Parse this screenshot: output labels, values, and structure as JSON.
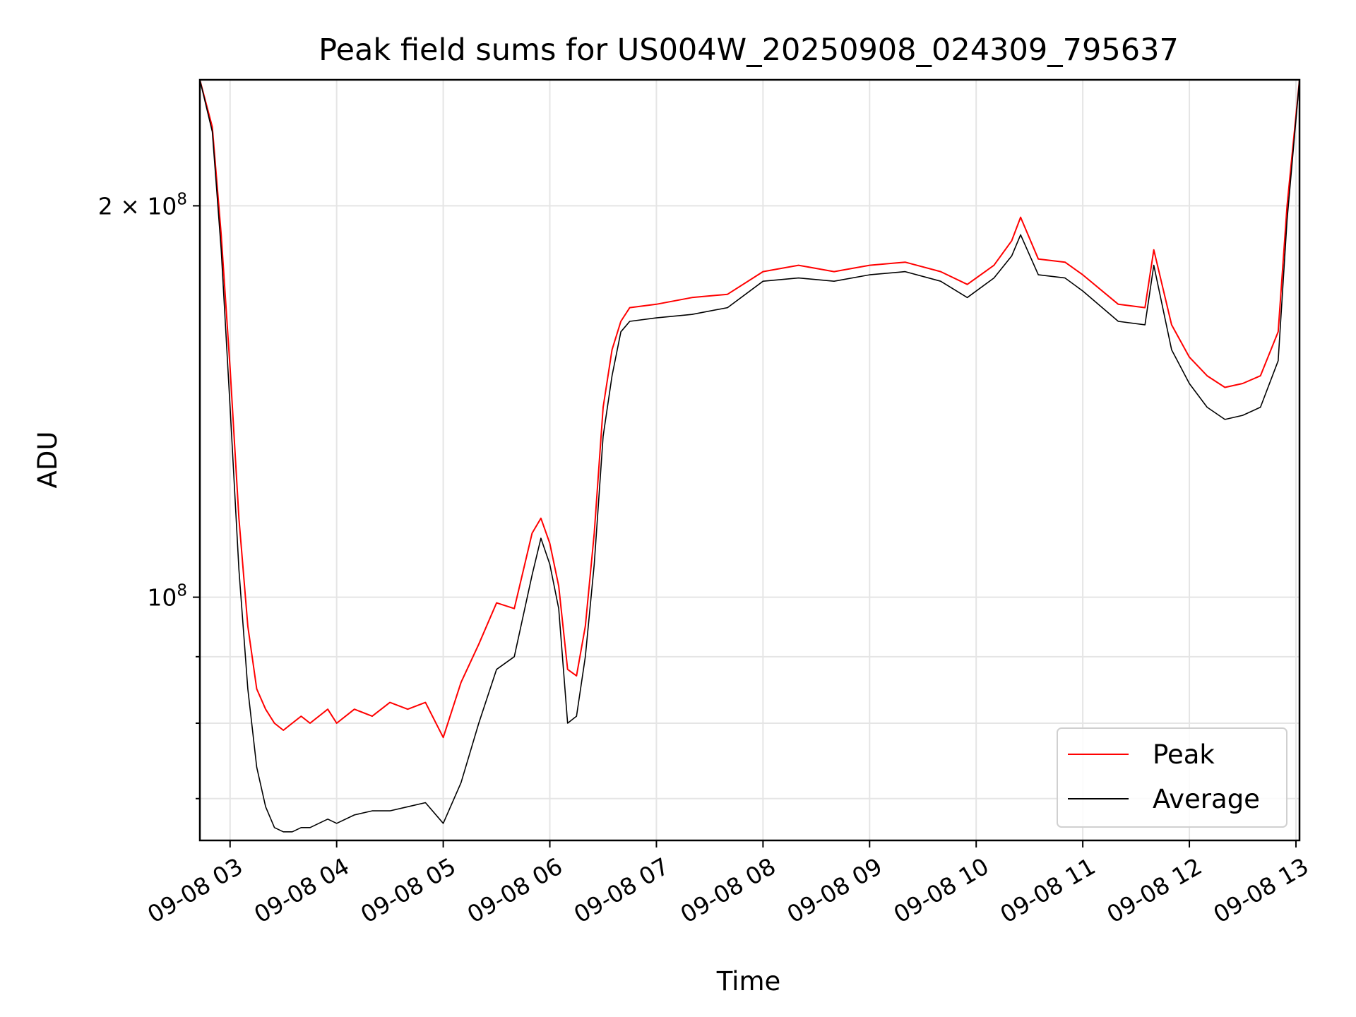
{
  "chart_data": {
    "type": "line",
    "title": "Peak field sums for US004W_20250908_024309_795637",
    "xlabel": "Time",
    "ylabel": "ADU",
    "y_scale": "log",
    "grid": true,
    "legend_position": "lower-right",
    "ylim": [
      65000000,
      250000000
    ],
    "xlim": [
      "2025-09-08 02:43",
      "2025-09-08 13:02"
    ],
    "x_ticks": [
      {
        "value": "2025-09-08 03:00",
        "label": "09-08 03"
      },
      {
        "value": "2025-09-08 04:00",
        "label": "09-08 04"
      },
      {
        "value": "2025-09-08 05:00",
        "label": "09-08 05"
      },
      {
        "value": "2025-09-08 06:00",
        "label": "09-08 06"
      },
      {
        "value": "2025-09-08 07:00",
        "label": "09-08 07"
      },
      {
        "value": "2025-09-08 08:00",
        "label": "09-08 08"
      },
      {
        "value": "2025-09-08 09:00",
        "label": "09-08 09"
      },
      {
        "value": "2025-09-08 10:00",
        "label": "09-08 10"
      },
      {
        "value": "2025-09-08 11:00",
        "label": "09-08 11"
      },
      {
        "value": "2025-09-08 12:00",
        "label": "09-08 12"
      },
      {
        "value": "2025-09-08 13:00",
        "label": "09-08 13"
      }
    ],
    "y_major_ticks": [
      {
        "value": 100000000,
        "base": "10",
        "exp": "8",
        "coef": ""
      },
      {
        "value": 200000000,
        "base": "10",
        "exp": "8",
        "coef": "2 × "
      }
    ],
    "y_minor_ticks": [
      70000000,
      80000000,
      90000000
    ],
    "series": [
      {
        "name": "Peak",
        "color": "#ff0000",
        "points": [
          [
            "2025-09-08 02:43",
            250000000
          ],
          [
            "2025-09-08 02:50",
            230000000
          ],
          [
            "2025-09-08 02:55",
            190000000
          ],
          [
            "2025-09-08 03:00",
            150000000
          ],
          [
            "2025-09-08 03:05",
            115000000
          ],
          [
            "2025-09-08 03:10",
            95000000
          ],
          [
            "2025-09-08 03:15",
            85000000
          ],
          [
            "2025-09-08 03:20",
            82000000
          ],
          [
            "2025-09-08 03:25",
            80000000
          ],
          [
            "2025-09-08 03:30",
            79000000
          ],
          [
            "2025-09-08 03:35",
            80000000
          ],
          [
            "2025-09-08 03:40",
            81000000
          ],
          [
            "2025-09-08 03:45",
            80000000
          ],
          [
            "2025-09-08 03:50",
            81000000
          ],
          [
            "2025-09-08 03:55",
            82000000
          ],
          [
            "2025-09-08 04:00",
            80000000
          ],
          [
            "2025-09-08 04:10",
            82000000
          ],
          [
            "2025-09-08 04:20",
            81000000
          ],
          [
            "2025-09-08 04:30",
            83000000
          ],
          [
            "2025-09-08 04:40",
            82000000
          ],
          [
            "2025-09-08 04:50",
            83000000
          ],
          [
            "2025-09-08 05:00",
            78000000
          ],
          [
            "2025-09-08 05:10",
            86000000
          ],
          [
            "2025-09-08 05:20",
            92000000
          ],
          [
            "2025-09-08 05:30",
            99000000
          ],
          [
            "2025-09-08 05:40",
            98000000
          ],
          [
            "2025-09-08 05:50",
            112000000
          ],
          [
            "2025-09-08 05:55",
            115000000
          ],
          [
            "2025-09-08 06:00",
            110000000
          ],
          [
            "2025-09-08 06:05",
            102000000
          ],
          [
            "2025-09-08 06:10",
            88000000
          ],
          [
            "2025-09-08 06:15",
            87000000
          ],
          [
            "2025-09-08 06:20",
            95000000
          ],
          [
            "2025-09-08 06:25",
            112000000
          ],
          [
            "2025-09-08 06:30",
            140000000
          ],
          [
            "2025-09-08 06:35",
            155000000
          ],
          [
            "2025-09-08 06:40",
            163000000
          ],
          [
            "2025-09-08 06:45",
            167000000
          ],
          [
            "2025-09-08 07:00",
            168000000
          ],
          [
            "2025-09-08 07:20",
            170000000
          ],
          [
            "2025-09-08 07:40",
            171000000
          ],
          [
            "2025-09-08 08:00",
            178000000
          ],
          [
            "2025-09-08 08:20",
            180000000
          ],
          [
            "2025-09-08 08:40",
            178000000
          ],
          [
            "2025-09-08 09:00",
            180000000
          ],
          [
            "2025-09-08 09:20",
            181000000
          ],
          [
            "2025-09-08 09:40",
            178000000
          ],
          [
            "2025-09-08 09:55",
            174000000
          ],
          [
            "2025-09-08 10:10",
            180000000
          ],
          [
            "2025-09-08 10:20",
            188000000
          ],
          [
            "2025-09-08 10:25",
            196000000
          ],
          [
            "2025-09-08 10:35",
            182000000
          ],
          [
            "2025-09-08 10:50",
            181000000
          ],
          [
            "2025-09-08 11:00",
            177000000
          ],
          [
            "2025-09-08 11:20",
            168000000
          ],
          [
            "2025-09-08 11:35",
            167000000
          ],
          [
            "2025-09-08 11:40",
            185000000
          ],
          [
            "2025-09-08 11:50",
            162000000
          ],
          [
            "2025-09-08 12:00",
            153000000
          ],
          [
            "2025-09-08 12:10",
            148000000
          ],
          [
            "2025-09-08 12:20",
            145000000
          ],
          [
            "2025-09-08 12:30",
            146000000
          ],
          [
            "2025-09-08 12:40",
            148000000
          ],
          [
            "2025-09-08 12:50",
            160000000
          ],
          [
            "2025-09-08 12:55",
            200000000
          ],
          [
            "2025-09-08 13:02",
            250000000
          ]
        ]
      },
      {
        "name": "Average",
        "color": "#000000",
        "points": [
          [
            "2025-09-08 02:43",
            250000000
          ],
          [
            "2025-09-08 02:50",
            228000000
          ],
          [
            "2025-09-08 02:55",
            185000000
          ],
          [
            "2025-09-08 03:00",
            140000000
          ],
          [
            "2025-09-08 03:05",
            105000000
          ],
          [
            "2025-09-08 03:10",
            85000000
          ],
          [
            "2025-09-08 03:15",
            74000000
          ],
          [
            "2025-09-08 03:20",
            69000000
          ],
          [
            "2025-09-08 03:25",
            66500000
          ],
          [
            "2025-09-08 03:30",
            66000000
          ],
          [
            "2025-09-08 03:35",
            66000000
          ],
          [
            "2025-09-08 03:40",
            66500000
          ],
          [
            "2025-09-08 03:45",
            66500000
          ],
          [
            "2025-09-08 03:50",
            67000000
          ],
          [
            "2025-09-08 03:55",
            67500000
          ],
          [
            "2025-09-08 04:00",
            67000000
          ],
          [
            "2025-09-08 04:10",
            68000000
          ],
          [
            "2025-09-08 04:20",
            68500000
          ],
          [
            "2025-09-08 04:30",
            68500000
          ],
          [
            "2025-09-08 04:40",
            69000000
          ],
          [
            "2025-09-08 04:50",
            69500000
          ],
          [
            "2025-09-08 05:00",
            67000000
          ],
          [
            "2025-09-08 05:10",
            72000000
          ],
          [
            "2025-09-08 05:20",
            80000000
          ],
          [
            "2025-09-08 05:30",
            88000000
          ],
          [
            "2025-09-08 05:40",
            90000000
          ],
          [
            "2025-09-08 05:50",
            104000000
          ],
          [
            "2025-09-08 05:55",
            111000000
          ],
          [
            "2025-09-08 06:00",
            106000000
          ],
          [
            "2025-09-08 06:05",
            98000000
          ],
          [
            "2025-09-08 06:10",
            80000000
          ],
          [
            "2025-09-08 06:15",
            81000000
          ],
          [
            "2025-09-08 06:20",
            90000000
          ],
          [
            "2025-09-08 06:25",
            106000000
          ],
          [
            "2025-09-08 06:30",
            133000000
          ],
          [
            "2025-09-08 06:35",
            148000000
          ],
          [
            "2025-09-08 06:40",
            160000000
          ],
          [
            "2025-09-08 06:45",
            163000000
          ],
          [
            "2025-09-08 07:00",
            164000000
          ],
          [
            "2025-09-08 07:20",
            165000000
          ],
          [
            "2025-09-08 07:40",
            167000000
          ],
          [
            "2025-09-08 08:00",
            175000000
          ],
          [
            "2025-09-08 08:20",
            176000000
          ],
          [
            "2025-09-08 08:40",
            175000000
          ],
          [
            "2025-09-08 09:00",
            177000000
          ],
          [
            "2025-09-08 09:20",
            178000000
          ],
          [
            "2025-09-08 09:40",
            175000000
          ],
          [
            "2025-09-08 09:55",
            170000000
          ],
          [
            "2025-09-08 10:10",
            176000000
          ],
          [
            "2025-09-08 10:20",
            183000000
          ],
          [
            "2025-09-08 10:25",
            190000000
          ],
          [
            "2025-09-08 10:35",
            177000000
          ],
          [
            "2025-09-08 10:50",
            176000000
          ],
          [
            "2025-09-08 11:00",
            172000000
          ],
          [
            "2025-09-08 11:20",
            163000000
          ],
          [
            "2025-09-08 11:35",
            162000000
          ],
          [
            "2025-09-08 11:40",
            180000000
          ],
          [
            "2025-09-08 11:50",
            155000000
          ],
          [
            "2025-09-08 12:00",
            146000000
          ],
          [
            "2025-09-08 12:10",
            140000000
          ],
          [
            "2025-09-08 12:20",
            137000000
          ],
          [
            "2025-09-08 12:30",
            138000000
          ],
          [
            "2025-09-08 12:40",
            140000000
          ],
          [
            "2025-09-08 12:50",
            152000000
          ],
          [
            "2025-09-08 12:55",
            195000000
          ],
          [
            "2025-09-08 13:02",
            250000000
          ]
        ]
      }
    ]
  }
}
